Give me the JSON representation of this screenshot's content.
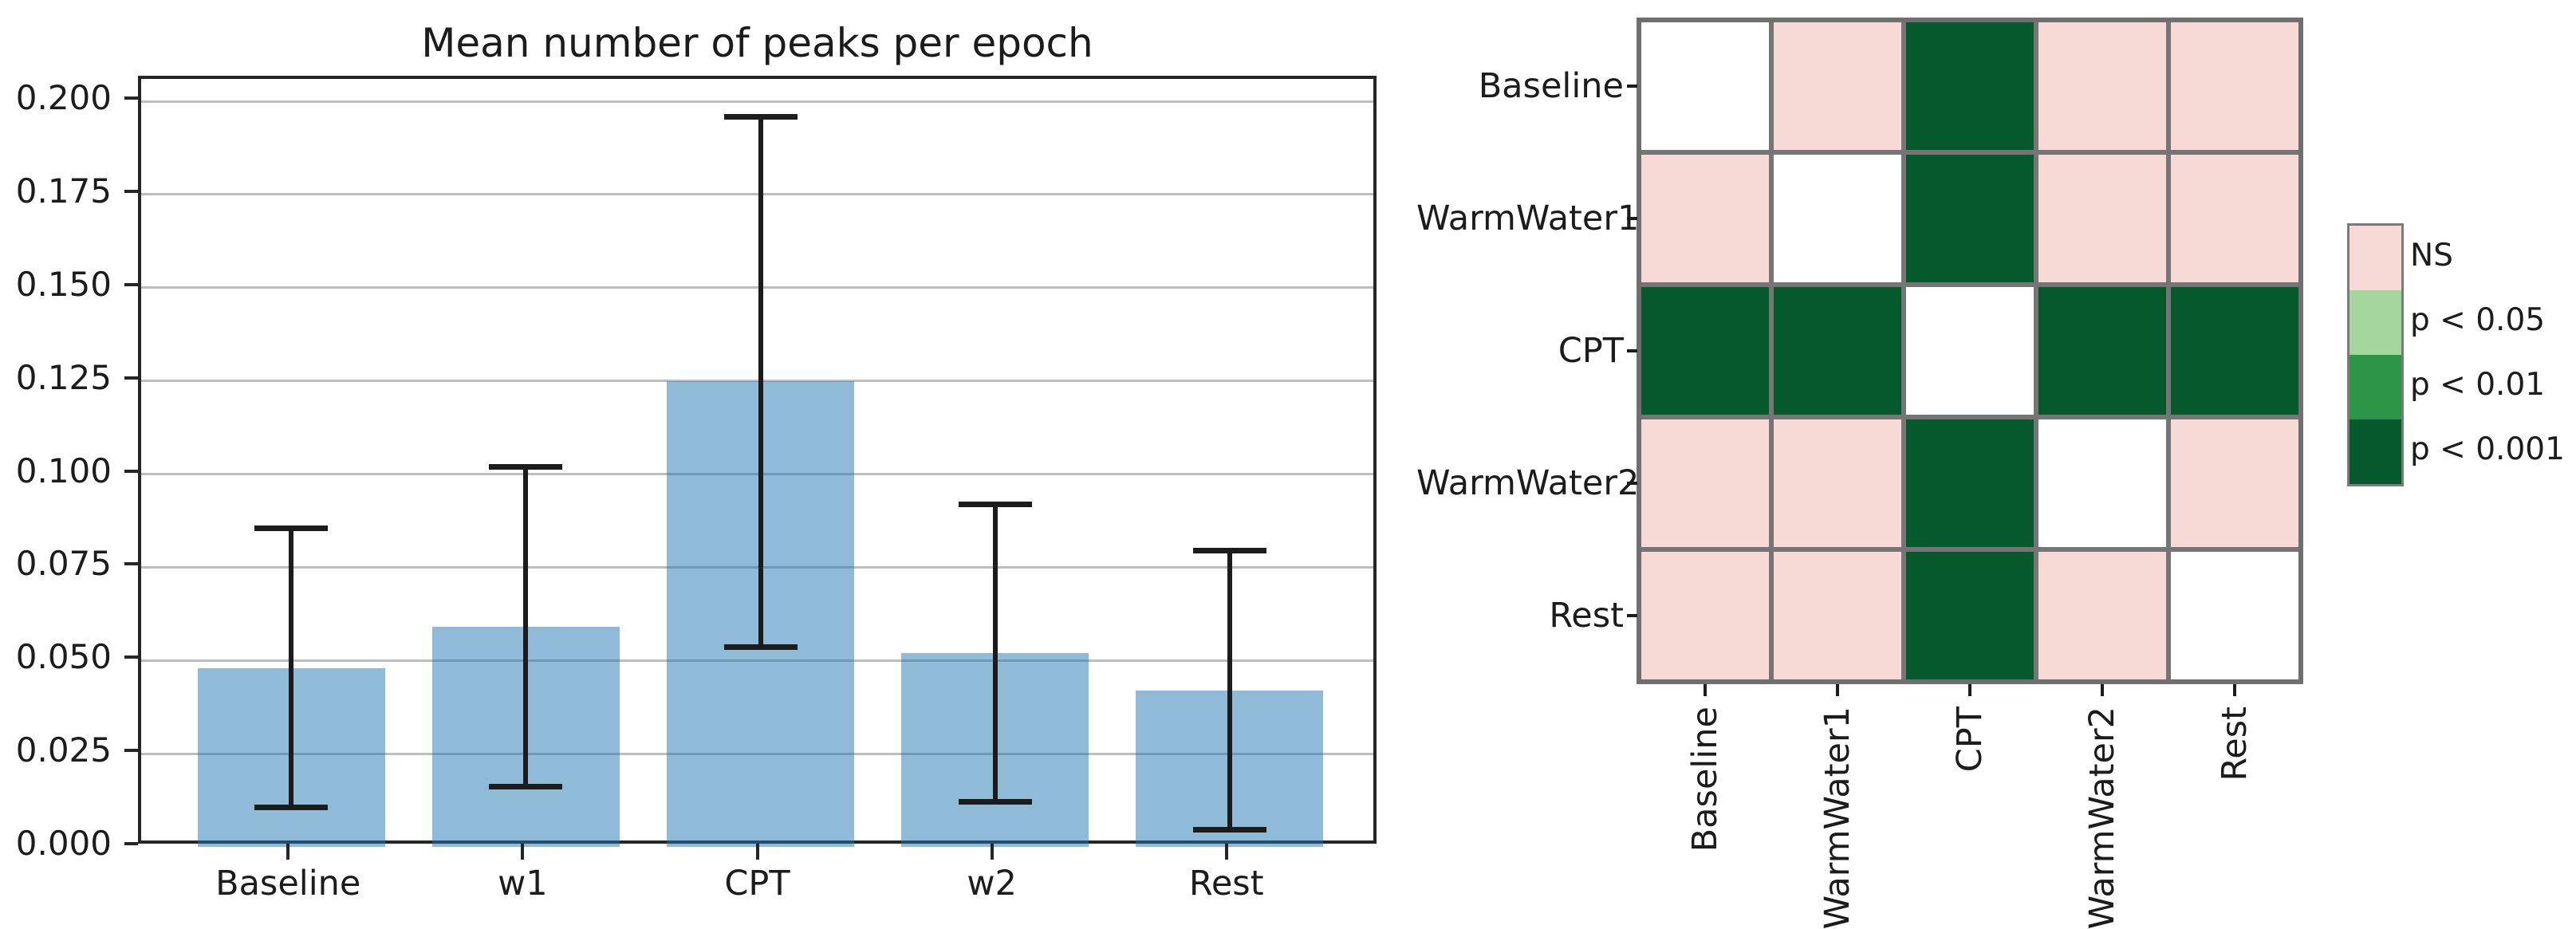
{
  "chart_data": [
    {
      "type": "bar",
      "title": "Mean number of peaks per epoch",
      "categories": [
        "Baseline",
        "w1",
        "CPT",
        "w2",
        "Rest"
      ],
      "values": [
        0.048,
        0.059,
        0.125,
        0.052,
        0.042
      ],
      "whisker_low": [
        0.0105,
        0.016,
        0.0535,
        0.012,
        0.0045
      ],
      "whisker_high": [
        0.0855,
        0.102,
        0.196,
        0.092,
        0.0795
      ],
      "xlabel": "",
      "ylabel": "",
      "ylim": [
        0,
        0.206
      ],
      "ytick_labels": [
        "0.000",
        "0.025",
        "0.050",
        "0.075",
        "0.100",
        "0.125",
        "0.150",
        "0.175",
        "0.200"
      ],
      "grid": true,
      "bar_color": "#1f77b4",
      "bar_alpha": 0.5,
      "error_color": "#1c1c1c",
      "spine_color": "#262626",
      "gridline_color": "#bdbdbd"
    },
    {
      "type": "heatmap",
      "rows": [
        "Baseline",
        "WarmWater1",
        "CPT",
        "WarmWater2",
        "Rest"
      ],
      "cols": [
        "Baseline",
        "WarmWater1",
        "CPT",
        "WarmWater2",
        "Rest"
      ],
      "cells": [
        [
          "self",
          "ns",
          "p001",
          "ns",
          "ns"
        ],
        [
          "ns",
          "self",
          "p001",
          "ns",
          "ns"
        ],
        [
          "p001",
          "p001",
          "self",
          "p001",
          "p001"
        ],
        [
          "ns",
          "ns",
          "p001",
          "self",
          "ns"
        ],
        [
          "ns",
          "ns",
          "p001",
          "ns",
          "self"
        ]
      ],
      "palette": {
        "self": "#ffffff",
        "ns": "#f7d9d6",
        "p05": "#a5d69d",
        "p01": "#2d9547",
        "p001": "#06592c"
      },
      "border_color": "#757575",
      "legend_position": "right",
      "legend": [
        {
          "label": "NS",
          "key": "ns",
          "color": "#f7d9d6"
        },
        {
          "label": "p < 0.05",
          "key": "p05",
          "color": "#a5d69d"
        },
        {
          "label": "p < 0.01",
          "key": "p01",
          "color": "#2d9547"
        },
        {
          "label": "p < 0.001",
          "key": "p001",
          "color": "#06592c"
        }
      ]
    }
  ]
}
